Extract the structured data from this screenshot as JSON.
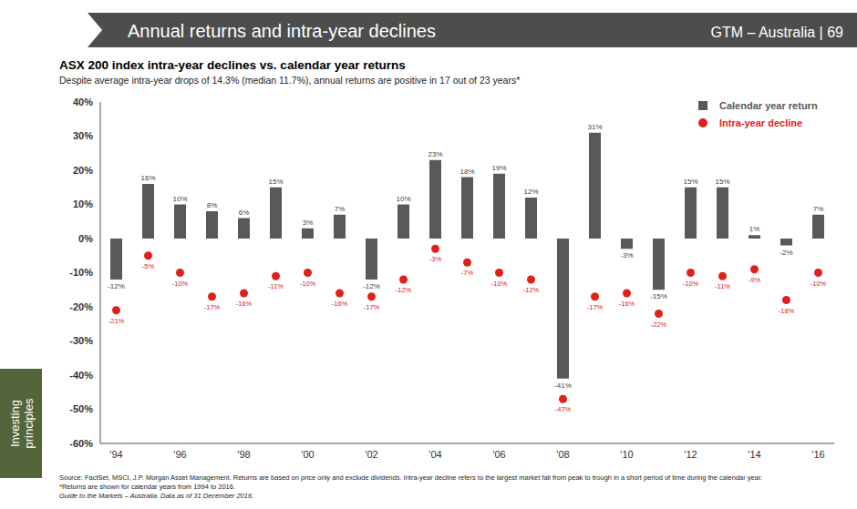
{
  "header": {
    "title": "Annual returns and intra-year declines",
    "tag": "GTM – Australia | 69"
  },
  "side_tab": "Investing principles",
  "chart_data": {
    "type": "bar",
    "title": "ASX 200 index intra-year declines vs. calendar year returns",
    "subtitle": "Despite average intra-year drops of 14.3% (median 11.7%), annual returns are positive in 17 out of 23 years*",
    "categories": [
      "'94",
      null,
      "'96",
      null,
      "'98",
      null,
      "'00",
      null,
      "'02",
      null,
      "'04",
      null,
      "'06",
      null,
      "'08",
      null,
      "'10",
      null,
      "'12",
      null,
      "'14",
      null,
      "'16"
    ],
    "series": [
      {
        "name": "Calendar year return",
        "type": "bar",
        "color": "#595959",
        "values": [
          -12,
          16,
          10,
          8,
          6,
          15,
          3,
          7,
          -12,
          10,
          23,
          18,
          19,
          12,
          -41,
          31,
          -3,
          -15,
          15,
          15,
          1,
          -2,
          7
        ],
        "value_labels": [
          "-12%",
          "16%",
          "10%",
          "8%",
          "6%",
          "15%",
          "3%",
          "7%",
          "-12%",
          "10%",
          "23%",
          "18%",
          "19%",
          "12%",
          "-41%",
          "31%",
          "-3%",
          "-15%",
          "15%",
          "15%",
          "1%",
          "-2%",
          "7%"
        ]
      },
      {
        "name": "Intra-year decline",
        "type": "scatter",
        "marker": "circle",
        "color": "#e0201b",
        "values": [
          -21,
          -5,
          -10,
          -17,
          -16,
          -11,
          -10,
          -16,
          -17,
          -12,
          -3,
          -7,
          -10,
          -12,
          -47,
          -17,
          -16,
          -22,
          -10,
          -11,
          -9,
          -18,
          -10
        ],
        "value_labels": [
          "-21%",
          "-5%",
          "-10%",
          "-17%",
          "-16%",
          "-11%",
          "-10%",
          "-16%",
          "-17%",
          "-12%",
          "-3%",
          "-7%",
          "-10%",
          "-12%",
          "-47%",
          "-17%",
          "-16%",
          "-22%",
          "-10%",
          "-11%",
          "-9%",
          "-18%",
          "-10%"
        ]
      }
    ],
    "ylim": [
      -60,
      40
    ],
    "yticks": [
      {
        "value": -60,
        "label": "-60%"
      },
      {
        "value": -50,
        "label": "-50%"
      },
      {
        "value": -40,
        "label": "-40%"
      },
      {
        "value": -30,
        "label": "-30%"
      },
      {
        "value": -20,
        "label": "-20%"
      },
      {
        "value": -10,
        "label": "-10%"
      },
      {
        "value": 0,
        "label": "0%"
      },
      {
        "value": 10,
        "label": "10%"
      },
      {
        "value": 20,
        "label": "20%"
      },
      {
        "value": 30,
        "label": "30%"
      },
      {
        "value": 40,
        "label": "40%"
      }
    ],
    "grid": false,
    "legend": "top right",
    "data_labels": true
  },
  "footnotes": [
    "Source: FactSet, MSCI, J.P. Morgan Asset Management. Returns are based on price only and exclude dividends. Intra-year decline refers to the largest market fall from peak to trough in a short period of time during the calendar year. *Returns are shown for calendar years from 1994 to 2016.",
    "Guide to the Markets – Australia. Data as of 31 December 2016."
  ]
}
